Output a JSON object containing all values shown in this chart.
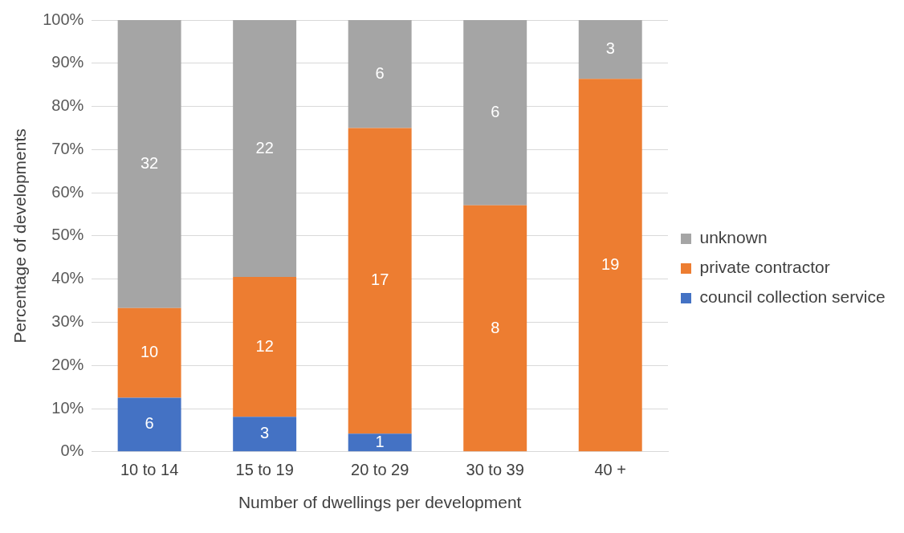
{
  "chart_data": {
    "type": "bar",
    "stacked": true,
    "xlabel": "Number of dwellings per development",
    "ylabel": "Percentage of developments",
    "categories": [
      "10 to 14",
      "15 to 19",
      "20 to 29",
      "30 to 39",
      "40 +"
    ],
    "series": [
      {
        "name": "council collection service",
        "color": "#4472c4",
        "values": [
          12.5,
          8.1,
          4.2,
          0,
          0
        ]
      },
      {
        "name": "private contractor",
        "color": "#ed7d31",
        "values": [
          20.8,
          32.4,
          70.8,
          57.1,
          86.4
        ]
      },
      {
        "name": "unknown",
        "color": "#a5a5a5",
        "values": [
          66.7,
          59.5,
          25,
          42.9,
          13.6
        ]
      }
    ],
    "annotations": [
      "6",
      "10",
      "32",
      "3",
      "12",
      "22",
      "1",
      "17",
      "6",
      "8",
      "6",
      "19",
      "3"
    ],
    "ylim": [
      0,
      100
    ],
    "yticks": [
      {
        "value": 0,
        "label": "0%"
      },
      {
        "value": 10,
        "label": "10%"
      },
      {
        "value": 20,
        "label": "20%"
      },
      {
        "value": 30,
        "label": "30%"
      },
      {
        "value": 40,
        "label": "40%"
      },
      {
        "value": 50,
        "label": "50%"
      },
      {
        "value": 60,
        "label": "60%"
      },
      {
        "value": 70,
        "label": "70%"
      },
      {
        "value": 80,
        "label": "80%"
      },
      {
        "value": 90,
        "label": "90%"
      },
      {
        "value": 100,
        "label": "100%"
      }
    ],
    "grid": "y",
    "legend": "right"
  }
}
